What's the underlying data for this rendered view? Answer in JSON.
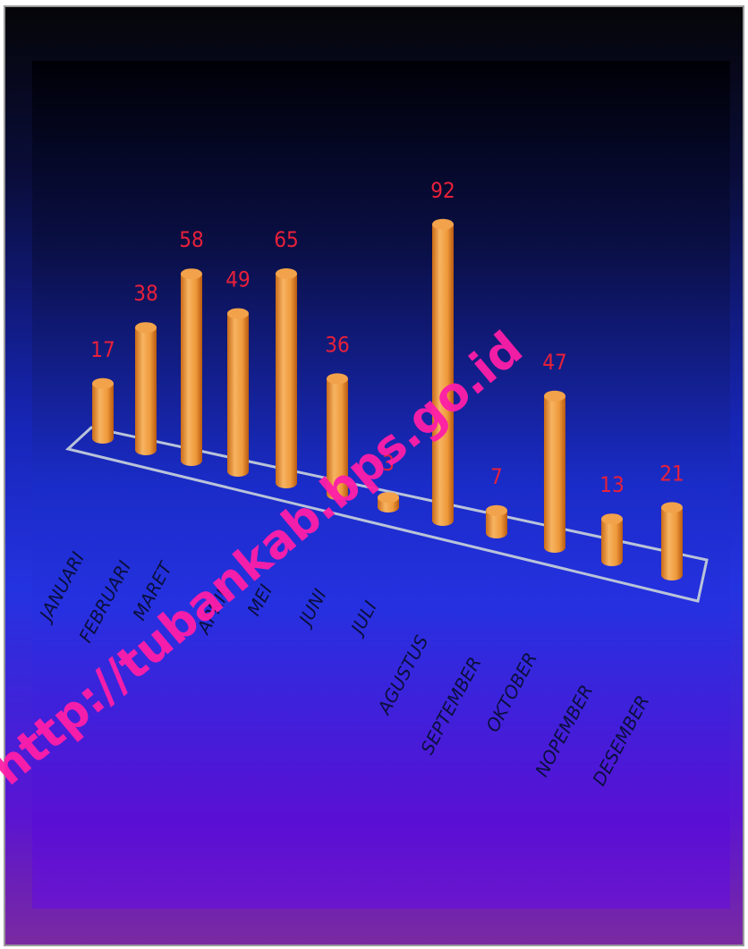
{
  "chart_data": {
    "type": "bar",
    "categories": [
      "JANUARI",
      "FEBRUARI",
      "MARET",
      "APRIL",
      "MEI",
      "JUNI",
      "JULI",
      "AGUSTUS",
      "SEPTEMBER",
      "OKTOBER",
      "NOPEMBER",
      "DESEMBER"
    ],
    "values": [
      17,
      38,
      58,
      49,
      65,
      36,
      3,
      92,
      7,
      47,
      13,
      21
    ],
    "title": "",
    "xlabel": "",
    "ylabel": "",
    "style": "3d-cylinder",
    "colors": {
      "bar": "#f5a347",
      "value_label": "#e8203a",
      "category_label": "#0a0f3c",
      "floor": "#b9c3d9"
    }
  },
  "watermark": "http://tubankab.bps.go.id"
}
